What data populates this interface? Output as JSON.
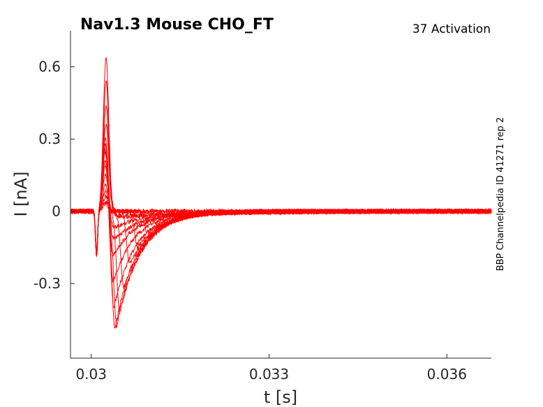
{
  "chart_data": {
    "type": "line",
    "title": "Nav1.3  Mouse  CHO_FT",
    "protocol_label": "37  Activation",
    "side_label": "BBP Channelpedia ID 41271 rep 2",
    "xlabel": "t [s]",
    "ylabel": "I [nA]",
    "xlim": [
      0.02965,
      0.03675
    ],
    "ylim": [
      -0.61,
      0.75
    ],
    "x_ticks": [
      0.03,
      0.033,
      0.036
    ],
    "x_tick_labels": [
      "0.03",
      "0.033",
      "0.036"
    ],
    "y_ticks": [
      -0.3,
      0,
      0.3,
      0.6
    ],
    "y_tick_labels": [
      "-0.3",
      "0",
      "0.3",
      "0.6"
    ],
    "grid": false,
    "series_color": "#ff0000",
    "trace_params": {
      "description_note": "",
      "dip_time": 0.03009,
      "dip_value": -0.19,
      "peak_values": [
        0.64,
        0.54,
        0.44,
        0.36,
        0.31,
        0.29,
        0.27,
        0.25,
        0.22,
        0.19,
        0.15,
        0.11,
        0.08,
        0.06,
        0.04,
        0.03
      ],
      "peak_times": [
        0.03025,
        0.03025,
        0.03025,
        0.03025,
        0.03024,
        0.03024,
        0.03024,
        0.03024,
        0.03024,
        0.03024,
        0.03024,
        0.03024,
        0.03024,
        0.03024,
        0.03024,
        0.03024
      ],
      "trough_values": [
        0.0,
        0.0,
        0.0,
        0.0,
        -0.05,
        -0.1,
        -0.17,
        -0.28,
        -0.39,
        -0.48,
        -0.48,
        -0.42,
        -0.32,
        -0.22,
        -0.15,
        -0.09
      ],
      "trough_times": [
        0.0303,
        0.0303,
        0.0303,
        0.0303,
        0.03035,
        0.03035,
        0.03036,
        0.03037,
        0.03038,
        0.0304,
        0.03043,
        0.03048,
        0.03055,
        0.03065,
        0.03078,
        0.03095
      ]
    }
  }
}
